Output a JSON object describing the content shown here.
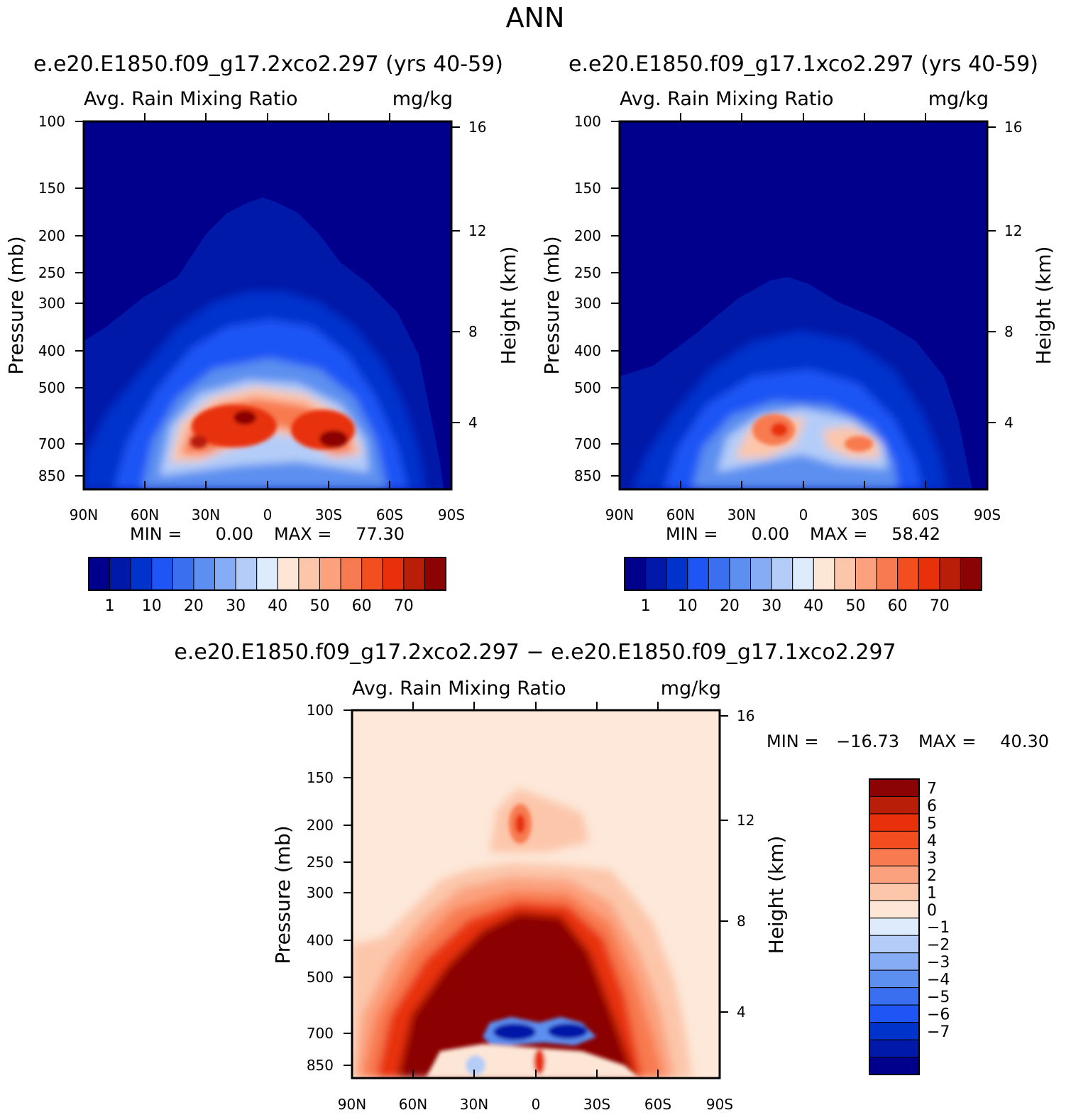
{
  "page_title": "ANN",
  "colors": {
    "bg_top": "#00008C",
    "bg_diff": "#FDE8D9",
    "frame": "#000000"
  },
  "chart_data": [
    {
      "id": "top-left",
      "type": "heatmap",
      "title": "e.e20.E1850.f09_g17.2xco2.297 (yrs 40-59)",
      "subtitle_left": "Avg. Rain Mixing Ratio",
      "subtitle_right": "mg/kg",
      "x_ticks": [
        "90N",
        "60N",
        "30N",
        "0",
        "30S",
        "60S",
        "90S"
      ],
      "y_label": "Pressure (mb)",
      "y_ticks": [
        100,
        150,
        200,
        250,
        300,
        400,
        500,
        700,
        850
      ],
      "y2_label": "Height (km)",
      "y2_ticks": [
        16,
        12,
        8,
        4
      ],
      "min_label": "MIN =",
      "min_value": "0.00",
      "max_label": "MAX =",
      "max_value": "77.30",
      "colorbar": {
        "orientation": "horizontal",
        "colors": [
          "#00008C",
          "#0019A8",
          "#0033CC",
          "#1F55F5",
          "#3A70F0",
          "#5C8FF0",
          "#86ACF5",
          "#B4CDF8",
          "#DDEBFD",
          "#FDE6D6",
          "#FCC6AA",
          "#FBA17E",
          "#F87A50",
          "#F24E20",
          "#E8300A",
          "#B81E08",
          "#8B0303"
        ],
        "labels": [
          "1",
          "10",
          "20",
          "30",
          "40",
          "50",
          "60",
          "70"
        ]
      }
    },
    {
      "id": "top-right",
      "type": "heatmap",
      "title": "e.e20.E1850.f09_g17.1xco2.297 (yrs 40-59)",
      "subtitle_left": "Avg. Rain Mixing Ratio",
      "subtitle_right": "mg/kg",
      "x_ticks": [
        "90N",
        "60N",
        "30N",
        "0",
        "30S",
        "60S",
        "90S"
      ],
      "y_label": "Pressure (mb)",
      "y_ticks": [
        100,
        150,
        200,
        250,
        300,
        400,
        500,
        700,
        850
      ],
      "y2_label": "Height (km)",
      "y2_ticks": [
        16,
        12,
        8,
        4
      ],
      "min_label": "MIN =",
      "min_value": "0.00",
      "max_label": "MAX =",
      "max_value": "58.42",
      "colorbar": {
        "orientation": "horizontal",
        "colors": [
          "#00008C",
          "#0019A8",
          "#0033CC",
          "#1F55F5",
          "#3A70F0",
          "#5C8FF0",
          "#86ACF5",
          "#B4CDF8",
          "#DDEBFD",
          "#FDE6D6",
          "#FCC6AA",
          "#FBA17E",
          "#F87A50",
          "#F24E20",
          "#E8300A",
          "#B81E08",
          "#8B0303"
        ],
        "labels": [
          "1",
          "10",
          "20",
          "30",
          "40",
          "50",
          "60",
          "70"
        ]
      }
    },
    {
      "id": "bottom",
      "type": "heatmap",
      "title": "e.e20.E1850.f09_g17.2xco2.297 − e.e20.E1850.f09_g17.1xco2.297",
      "subtitle_left": "Avg. Rain Mixing Ratio",
      "subtitle_right": "mg/kg",
      "x_ticks": [
        "90N",
        "60N",
        "30N",
        "0",
        "30S",
        "60S",
        "90S"
      ],
      "y_label": "Pressure (mb)",
      "y_ticks": [
        100,
        150,
        200,
        250,
        300,
        400,
        500,
        700,
        850
      ],
      "y2_label": "Height (km)",
      "y2_ticks": [
        16,
        12,
        8,
        4
      ],
      "min_label": "MIN =",
      "min_value": "−16.73",
      "max_label": "MAX =",
      "max_value": "40.30",
      "colorbar": {
        "orientation": "vertical",
        "colors": [
          "#8B0303",
          "#B81E08",
          "#E8300A",
          "#F24E20",
          "#F87A50",
          "#FBA17E",
          "#FCC6AA",
          "#FDE6D6",
          "#DDEBFD",
          "#B4CDF8",
          "#86ACF5",
          "#5C8FF0",
          "#3A70F0",
          "#1F55F5",
          "#0033CC",
          "#0019A8",
          "#00008C"
        ],
        "labels": [
          "7",
          "6",
          "5",
          "4",
          "3",
          "2",
          "1",
          "0",
          "−1",
          "−2",
          "−3",
          "−4",
          "−5",
          "−6",
          "−7"
        ]
      }
    }
  ]
}
